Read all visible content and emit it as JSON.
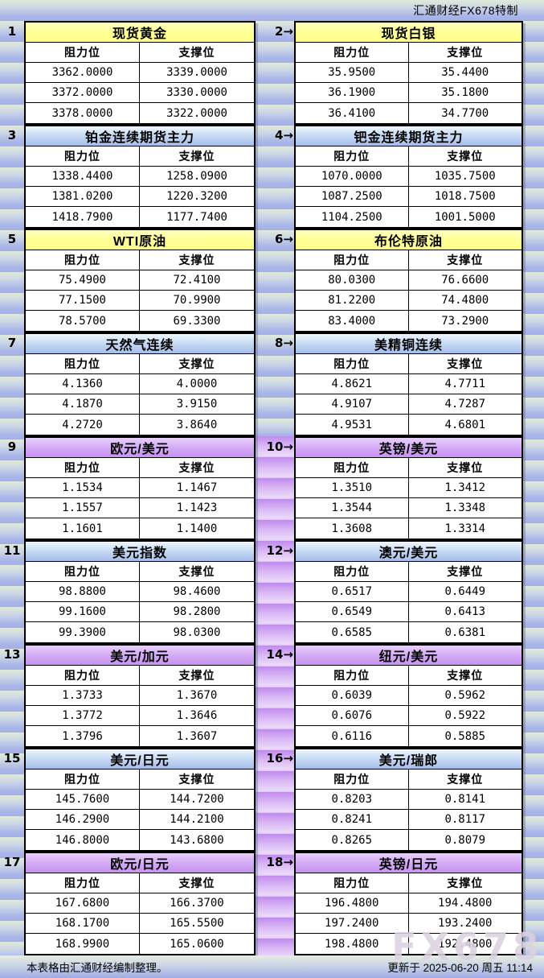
{
  "page": {
    "brand": "汇通财经FX678特制",
    "footer_left": "本表格由汇通财经编制整理。",
    "footer_right": "更新于 2025-06-20 周五 11:14",
    "watermark": "FX678"
  },
  "labels": {
    "resistance": "阻力位",
    "support": "支撑位"
  },
  "colors": {
    "header_yellow": "#ffff99",
    "header_blue": "#a9bfec",
    "header_purple": "#cc99ff",
    "stripe_green": "#dfeadb",
    "stripe_blue": "#a6b2e6",
    "stripe_purple": "#cc99ee",
    "table_bg": "#ffffff",
    "border": "#000000"
  },
  "tables": [
    {
      "num_label": "1",
      "title": "现货黄金",
      "style": "yellow",
      "rows": [
        [
          "3362.0000",
          "3339.0000"
        ],
        [
          "3372.0000",
          "3330.0000"
        ],
        [
          "3378.0000",
          "3322.0000"
        ]
      ]
    },
    {
      "num_label": "2→",
      "title": "现货白银",
      "style": "yellow",
      "rows": [
        [
          "35.9500",
          "35.4400"
        ],
        [
          "36.1900",
          "35.1800"
        ],
        [
          "36.4100",
          "34.7700"
        ]
      ]
    },
    {
      "num_label": "3",
      "title": "铂金连续期货主力",
      "style": "blue",
      "rows": [
        [
          "1338.4400",
          "1258.0900"
        ],
        [
          "1381.0200",
          "1220.3200"
        ],
        [
          "1418.7900",
          "1177.7400"
        ]
      ]
    },
    {
      "num_label": "4→",
      "title": "钯金连续期货主力",
      "style": "blue",
      "rows": [
        [
          "1070.0000",
          "1035.7500"
        ],
        [
          "1087.2500",
          "1018.7500"
        ],
        [
          "1104.2500",
          "1001.5000"
        ]
      ]
    },
    {
      "num_label": "5",
      "title": "WTI原油",
      "style": "yellow",
      "rows": [
        [
          "75.4900",
          "72.4100"
        ],
        [
          "77.1500",
          "70.9900"
        ],
        [
          "78.5700",
          "69.3300"
        ]
      ]
    },
    {
      "num_label": "6→",
      "title": "布伦特原油",
      "style": "yellow",
      "rows": [
        [
          "80.0300",
          "76.6600"
        ],
        [
          "81.2200",
          "74.4800"
        ],
        [
          "83.4000",
          "73.2900"
        ]
      ]
    },
    {
      "num_label": "7",
      "title": "天然气连续",
      "style": "blue",
      "rows": [
        [
          "4.1360",
          "4.0000"
        ],
        [
          "4.1870",
          "3.9150"
        ],
        [
          "4.2720",
          "3.8640"
        ]
      ]
    },
    {
      "num_label": "8→",
      "title": "美精铜连续",
      "style": "blue",
      "rows": [
        [
          "4.8621",
          "4.7711"
        ],
        [
          "4.9107",
          "4.7287"
        ],
        [
          "4.9531",
          "4.6801"
        ]
      ]
    },
    {
      "num_label": "9",
      "title": "欧元/美元",
      "style": "purple",
      "rows": [
        [
          "1.1534",
          "1.1467"
        ],
        [
          "1.1557",
          "1.1423"
        ],
        [
          "1.1601",
          "1.1400"
        ]
      ]
    },
    {
      "num_label": "10→",
      "title": "英镑/美元",
      "style": "purple",
      "rows": [
        [
          "1.3510",
          "1.3412"
        ],
        [
          "1.3544",
          "1.3348"
        ],
        [
          "1.3608",
          "1.3314"
        ]
      ]
    },
    {
      "num_label": "11",
      "title": "美元指数",
      "style": "blue",
      "rows": [
        [
          "98.8800",
          "98.4600"
        ],
        [
          "99.1600",
          "98.2800"
        ],
        [
          "99.3900",
          "98.0300"
        ]
      ]
    },
    {
      "num_label": "12→",
      "title": "澳元/美元",
      "style": "blue",
      "rows": [
        [
          "0.6517",
          "0.6449"
        ],
        [
          "0.6549",
          "0.6413"
        ],
        [
          "0.6585",
          "0.6381"
        ]
      ]
    },
    {
      "num_label": "13",
      "title": "美元/加元",
      "style": "purple",
      "rows": [
        [
          "1.3733",
          "1.3670"
        ],
        [
          "1.3772",
          "1.3646"
        ],
        [
          "1.3796",
          "1.3607"
        ]
      ]
    },
    {
      "num_label": "14→",
      "title": "纽元/美元",
      "style": "purple",
      "rows": [
        [
          "0.6039",
          "0.5962"
        ],
        [
          "0.6076",
          "0.5922"
        ],
        [
          "0.6116",
          "0.5885"
        ]
      ]
    },
    {
      "num_label": "15",
      "title": "美元/日元",
      "style": "blue",
      "rows": [
        [
          "145.7600",
          "144.7200"
        ],
        [
          "146.2900",
          "144.2100"
        ],
        [
          "146.8000",
          "143.6800"
        ]
      ]
    },
    {
      "num_label": "16→",
      "title": "美元/瑞郎",
      "style": "blue",
      "rows": [
        [
          "0.8203",
          "0.8141"
        ],
        [
          "0.8241",
          "0.8117"
        ],
        [
          "0.8265",
          "0.8079"
        ]
      ]
    },
    {
      "num_label": "17",
      "title": "欧元/日元",
      "style": "purple",
      "rows": [
        [
          "167.6800",
          "166.3700"
        ],
        [
          "168.1700",
          "165.5500"
        ],
        [
          "168.9900",
          "165.0600"
        ]
      ]
    },
    {
      "num_label": "18→",
      "title": "英镑/日元",
      "style": "purple",
      "rows": [
        [
          "196.4800",
          "194.4800"
        ],
        [
          "197.2400",
          "193.2400"
        ],
        [
          "198.4800",
          "192.4800"
        ]
      ]
    }
  ]
}
